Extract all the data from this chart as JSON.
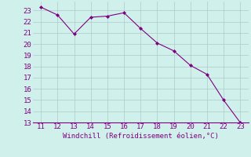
{
  "x": [
    11,
    12,
    13,
    14,
    15,
    16,
    17,
    18,
    19,
    20,
    21,
    22,
    23
  ],
  "y": [
    23.3,
    22.6,
    20.9,
    22.4,
    22.5,
    22.8,
    21.4,
    20.1,
    19.4,
    18.1,
    17.3,
    15.0,
    13.0
  ],
  "xlim": [
    10.5,
    23.5
  ],
  "ylim": [
    13,
    23.8
  ],
  "xticks": [
    11,
    12,
    13,
    14,
    15,
    16,
    17,
    18,
    19,
    20,
    21,
    22,
    23
  ],
  "yticks": [
    13,
    14,
    15,
    16,
    17,
    18,
    19,
    20,
    21,
    22,
    23
  ],
  "xlabel": "Windchill (Refroidissement éolien,°C)",
  "line_color": "#800080",
  "marker": "D",
  "marker_size": 2,
  "bg_color": "#d0f0ec",
  "grid_color": "#b0c8c8",
  "font_color": "#800080",
  "font_size": 6.5,
  "xlabel_fontsize": 6.5
}
